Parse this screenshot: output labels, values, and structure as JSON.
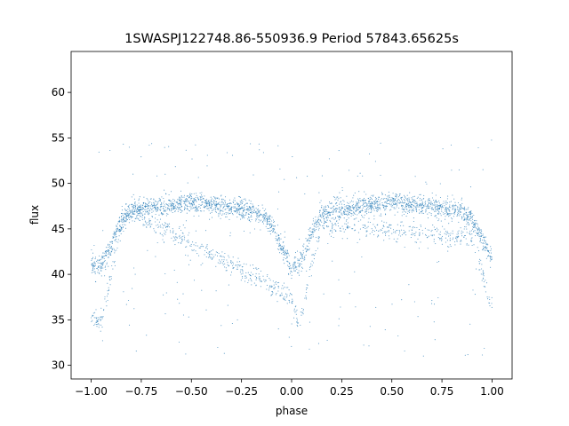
{
  "chart_data": {
    "type": "scatter",
    "title": "1SWASPJ122748.86-550936.9 Period 57843.65625s",
    "xlabel": "phase",
    "ylabel": "flux",
    "xlim": [
      -1.1,
      1.1
    ],
    "ylim": [
      28.5,
      64.5
    ],
    "x_ticks": [
      {
        "value": -1.0,
        "label": "−1.00"
      },
      {
        "value": -0.75,
        "label": "−0.75"
      },
      {
        "value": -0.5,
        "label": "−0.50"
      },
      {
        "value": -0.25,
        "label": "−0.25"
      },
      {
        "value": 0.0,
        "label": "0.00"
      },
      {
        "value": 0.25,
        "label": "0.25"
      },
      {
        "value": 0.5,
        "label": "0.50"
      },
      {
        "value": 0.75,
        "label": "0.75"
      },
      {
        "value": 1.0,
        "label": "1.00"
      }
    ],
    "y_ticks": [
      {
        "value": 30,
        "label": "30"
      },
      {
        "value": 35,
        "label": "35"
      },
      {
        "value": 40,
        "label": "40"
      },
      {
        "value": 45,
        "label": "45"
      },
      {
        "value": 50,
        "label": "50"
      },
      {
        "value": 55,
        "label": "55"
      },
      {
        "value": 60,
        "label": "60"
      }
    ],
    "grid": false,
    "legend": "none",
    "point_color": "#1f77b4",
    "series": [
      {
        "description_points": "phase folded light curve, upper branch",
        "x": [
          -1.0,
          -0.95,
          -0.9,
          -0.85,
          -0.8,
          -0.75,
          -0.5,
          -0.25,
          -0.15,
          -0.1,
          -0.05,
          0.0,
          0.05,
          0.1,
          0.15,
          0.2,
          0.25,
          0.5,
          0.75,
          0.85,
          0.9,
          0.95,
          1.0
        ],
        "y": [
          41.2,
          41.0,
          43.0,
          46.0,
          47.0,
          47.3,
          47.8,
          47.2,
          46.5,
          45.5,
          43.0,
          40.7,
          41.5,
          44.5,
          46.5,
          47.0,
          47.2,
          47.9,
          47.3,
          46.8,
          46.0,
          44.0,
          41.5
        ]
      },
      {
        "description_points": "phase folded light curve, lower branch",
        "x": [
          -1.0,
          -0.97,
          -0.95,
          -0.92,
          -0.9,
          -0.87,
          -0.85,
          -0.8,
          0.0,
          0.03,
          0.06,
          0.1,
          0.15,
          0.9,
          0.95,
          0.98,
          1.0
        ],
        "y": [
          35.5,
          34.6,
          35.0,
          37.5,
          40.0,
          43.0,
          45.0,
          46.8,
          37.5,
          34.5,
          36.5,
          41.0,
          45.5,
          44.0,
          40.5,
          37.5,
          36.2
        ]
      }
    ]
  }
}
